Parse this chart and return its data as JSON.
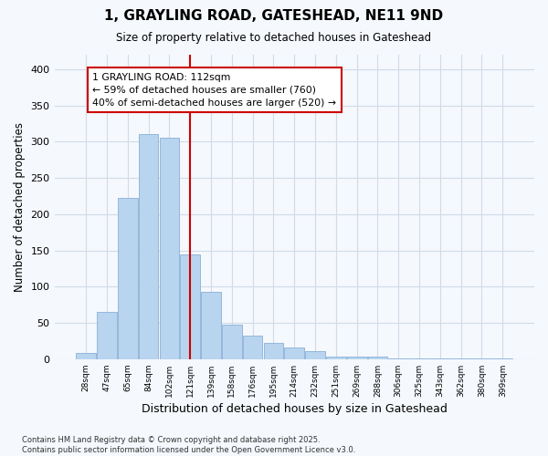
{
  "title1": "1, GRAYLING ROAD, GATESHEAD, NE11 9ND",
  "title2": "Size of property relative to detached houses in Gateshead",
  "xlabel": "Distribution of detached houses by size in Gateshead",
  "ylabel": "Number of detached properties",
  "categories": [
    "28sqm",
    "47sqm",
    "65sqm",
    "84sqm",
    "102sqm",
    "121sqm",
    "139sqm",
    "158sqm",
    "176sqm",
    "195sqm",
    "214sqm",
    "232sqm",
    "251sqm",
    "269sqm",
    "288sqm",
    "306sqm",
    "325sqm",
    "343sqm",
    "362sqm",
    "380sqm",
    "399sqm"
  ],
  "values": [
    8,
    65,
    222,
    310,
    305,
    145,
    93,
    48,
    32,
    22,
    16,
    11,
    4,
    4,
    4,
    1,
    1,
    1,
    1,
    1,
    1
  ],
  "bar_color": "#b8d4ee",
  "bar_edgecolor": "#8ab0d8",
  "vline_x": 5,
  "vline_color": "#cc0000",
  "box_text": "1 GRAYLING ROAD: 112sqm\n← 59% of detached houses are smaller (760)\n40% of semi-detached houses are larger (520) →",
  "footnote1": "Contains HM Land Registry data © Crown copyright and database right 2025.",
  "footnote2": "Contains public sector information licensed under the Open Government Licence v3.0.",
  "ylim": [
    0,
    420
  ],
  "yticks": [
    0,
    50,
    100,
    150,
    200,
    250,
    300,
    350,
    400
  ],
  "grid_color": "#d0dce8",
  "background_color": "#f5f8fd"
}
